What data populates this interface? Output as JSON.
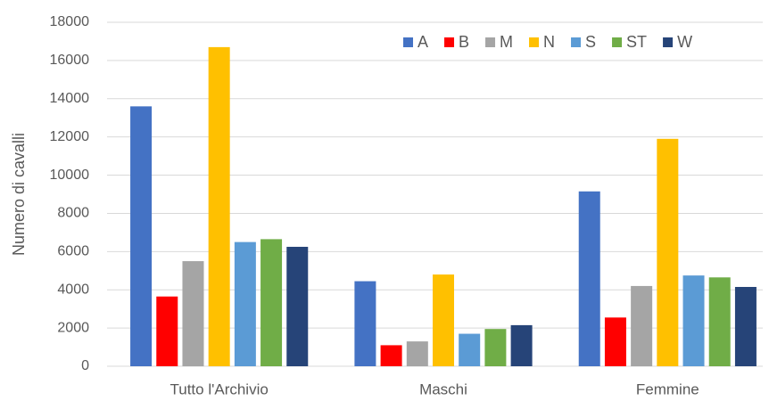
{
  "chart_data": {
    "type": "bar",
    "y_label": "Numero di cavalli",
    "categories": [
      "Tutto l'Archivio",
      "Maschi",
      "Femmine"
    ],
    "series": [
      {
        "name": "A",
        "color": "#4472c4",
        "values": [
          13600,
          4450,
          9150
        ]
      },
      {
        "name": "B",
        "color": "#ff0000",
        "values": [
          3650,
          1100,
          2550
        ]
      },
      {
        "name": "M",
        "color": "#a5a5a5",
        "values": [
          5500,
          1300,
          4200
        ]
      },
      {
        "name": "N",
        "color": "#ffc000",
        "values": [
          16700,
          4800,
          11900
        ]
      },
      {
        "name": "S",
        "color": "#5b9bd5",
        "values": [
          6500,
          1700,
          4750
        ]
      },
      {
        "name": "ST",
        "color": "#70ad47",
        "values": [
          6650,
          1950,
          4650
        ]
      },
      {
        "name": "W",
        "color": "#264478",
        "values": [
          6250,
          2150,
          4150
        ]
      }
    ],
    "ylim": [
      0,
      18000
    ],
    "yticks": [
      0,
      2000,
      4000,
      6000,
      8000,
      10000,
      12000,
      14000,
      16000,
      18000
    ],
    "grid": true,
    "legend": "top-right"
  }
}
